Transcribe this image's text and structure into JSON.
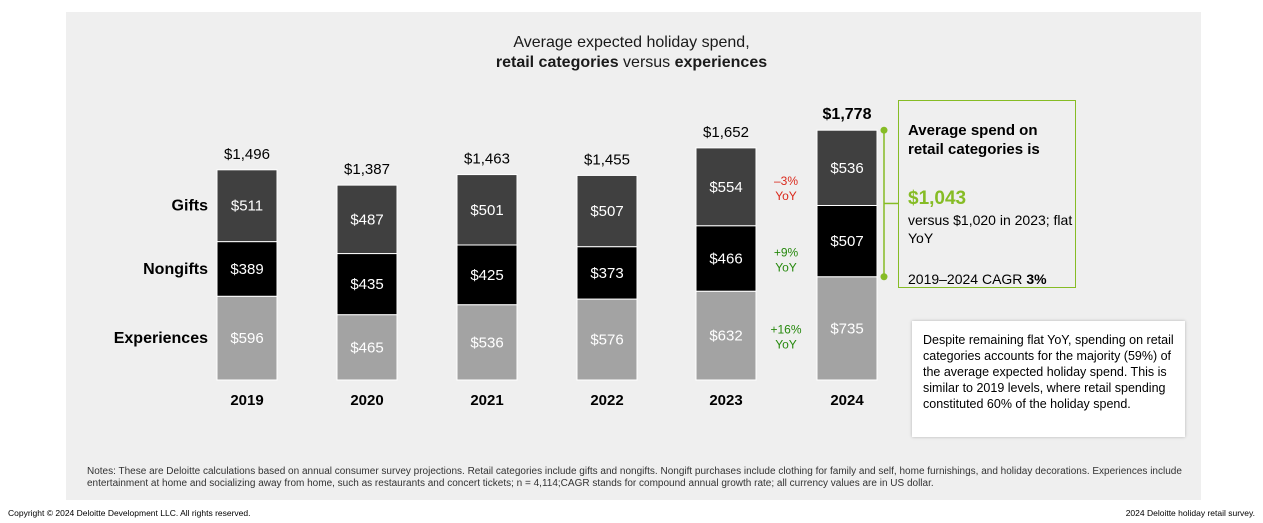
{
  "chart_data": {
    "type": "bar",
    "stacked": true,
    "title_line1": "Average expected holiday spend,",
    "title_line2_bold1": "retail categories",
    "title_line2_mid": " versus ",
    "title_line2_bold2": "experiences",
    "categories": [
      "2019",
      "2020",
      "2021",
      "2022",
      "2023",
      "2024"
    ],
    "totals": [
      "$1,496",
      "$1,387",
      "$1,463",
      "$1,455",
      "$1,652",
      "$1,778"
    ],
    "series": [
      {
        "name": "Experiences",
        "color": "#a3a3a3",
        "values": [
          596,
          465,
          536,
          576,
          632,
          735
        ],
        "labels": [
          "$596",
          "$465",
          "$536",
          "$576",
          "$632",
          "$735"
        ]
      },
      {
        "name": "Nongifts",
        "color": "#000000",
        "values": [
          389,
          435,
          425,
          373,
          466,
          507
        ],
        "labels": [
          "$389",
          "$435",
          "$425",
          "$373",
          "$466",
          "$507"
        ]
      },
      {
        "name": "Gifts",
        "color": "#404040",
        "values": [
          511,
          487,
          501,
          507,
          554,
          536
        ],
        "labels": [
          "$511",
          "$487",
          "$501",
          "$507",
          "$554",
          "$536"
        ]
      }
    ],
    "yoy_annotations": [
      {
        "series": "Gifts",
        "text_line1": "–3%",
        "text_line2": "YoY",
        "color": "#da291c"
      },
      {
        "series": "Nongifts",
        "text_line1": "+9%",
        "text_line2": "YoY",
        "color": "#26890d"
      },
      {
        "series": "Experiences",
        "text_line1": "+16%",
        "text_line2": "YoY",
        "color": "#26890d"
      }
    ],
    "ylim": [
      0,
      1800
    ]
  },
  "callout": {
    "heading": "Average spend on retail categories is",
    "value": "$1,043",
    "sub": "versus $1,020 in 2023; flat YoY",
    "cagr_text": "2019–2024 CAGR ",
    "cagr_value": "3%"
  },
  "note_box": "Despite remaining flat YoY, spending on retail categories accounts for the majority (59%) of the average expected holiday spend. This is similar to 2019 levels, where retail spending constituted 60% of the holiday spend.",
  "notes": "Notes: These are Deloitte calculations based on annual consumer survey projections. Retail categories include gifts and nongifts. Nongift purchases include clothing for family and self, home furnishings, and holiday decorations. Experiences include entertainment at home and socializing away from home, such as restaurants and concert tickets; n = 4,114;CAGR stands for compound annual growth rate; all currency values are in US dollar.",
  "copyright": "Copyright © 2024 Deloitte Development LLC. All rights reserved.",
  "survey": "2024 Deloitte holiday retail survey.",
  "colors": {
    "accent_green": "#86bc25",
    "yoy_red": "#da291c",
    "yoy_green": "#26890d"
  }
}
